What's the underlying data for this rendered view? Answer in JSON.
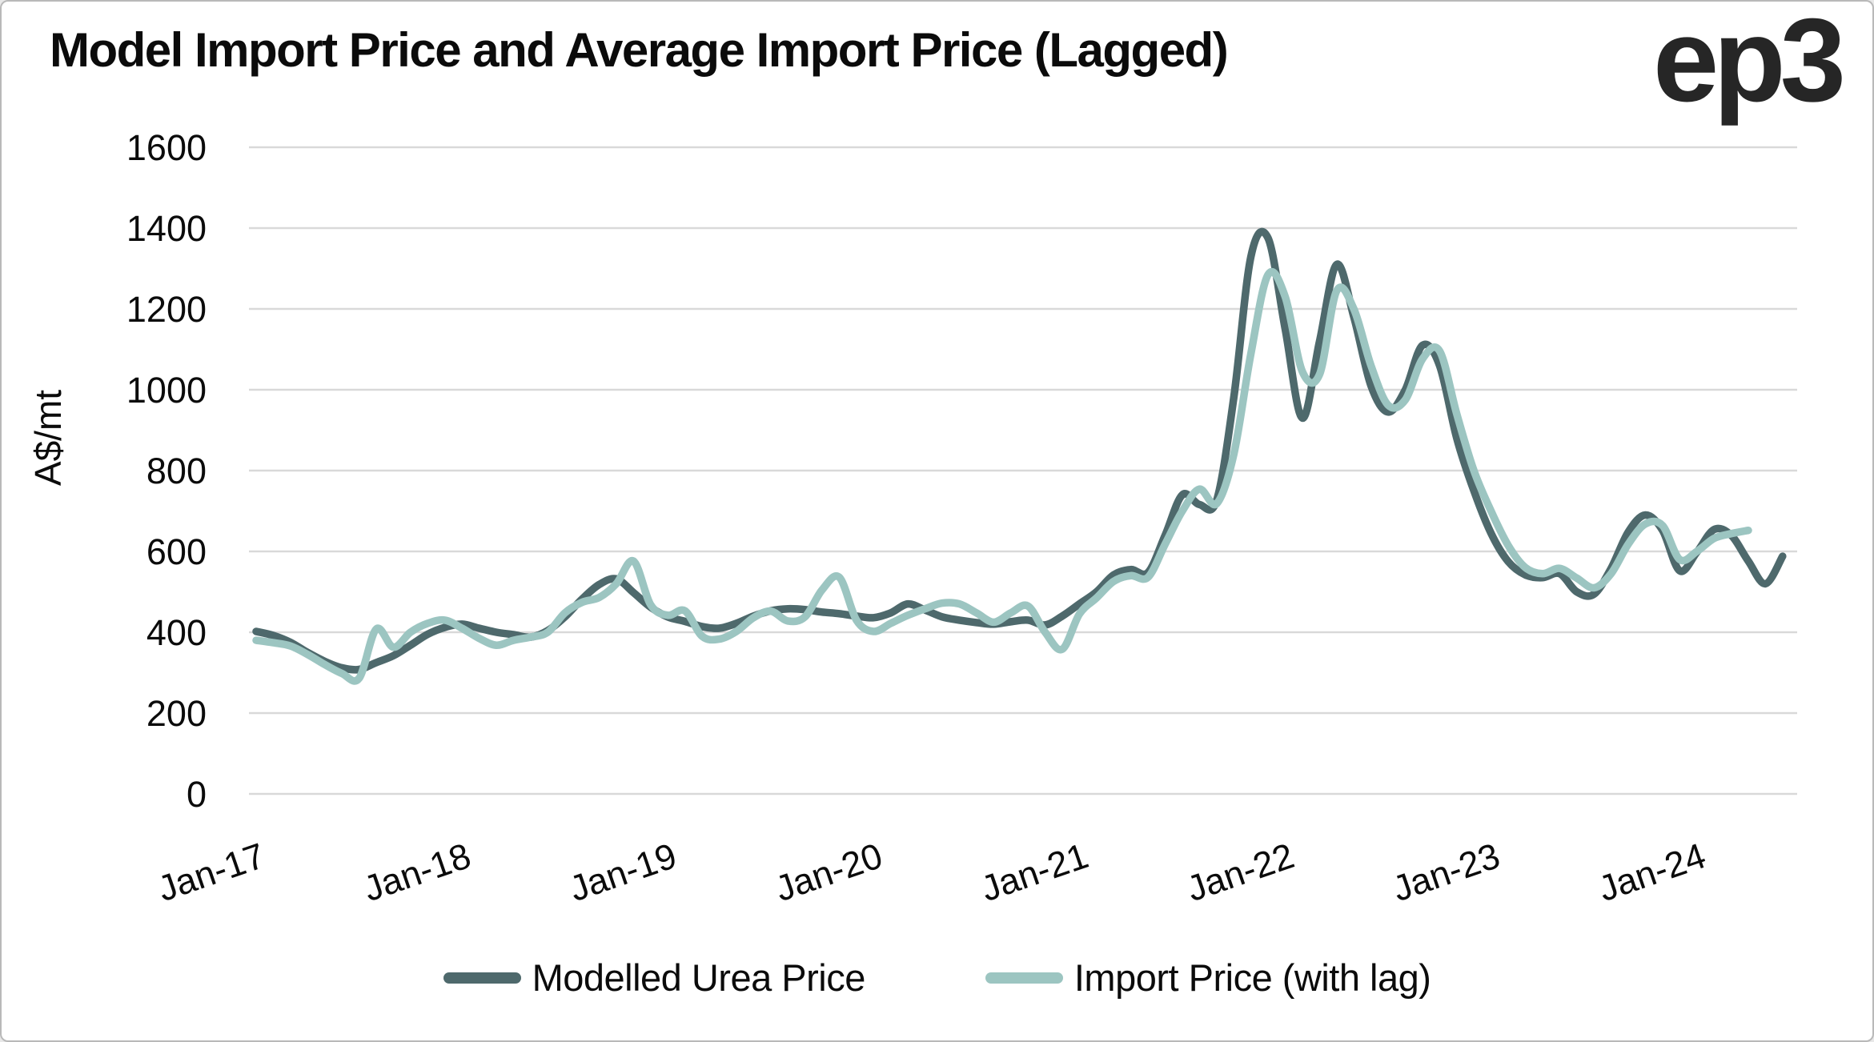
{
  "header": {
    "title": "Model Import Price and Average Import Price (Lagged)",
    "logo_text": "ep3"
  },
  "chart_data": {
    "type": "line",
    "title": "Model Import Price and Average Import Price (Lagged)",
    "xlabel": "",
    "ylabel": "A$/mt",
    "ylim": [
      0,
      1600
    ],
    "ytick_step": 200,
    "ytick_labels": [
      "0",
      "200",
      "400",
      "600",
      "800",
      "1000",
      "1200",
      "1400",
      "1600"
    ],
    "xtick_labels": [
      "Jan-17",
      "Jan-18",
      "Jan-19",
      "Jan-20",
      "Jan-21",
      "Jan-22",
      "Jan-23",
      "Jan-24"
    ],
    "x_start_month": "Jan-17",
    "x_frequency": "monthly",
    "months_per_xtick": 12,
    "grid": "horizontal-only",
    "legend_position": "bottom-center",
    "series": [
      {
        "name": "Modelled Urea Price",
        "color": "#4e696c",
        "end_month": "Jun-24",
        "values": [
          402,
          392,
          375,
          350,
          328,
          312,
          308,
          325,
          342,
          368,
          395,
          412,
          420,
          410,
          400,
          394,
          388,
          404,
          438,
          482,
          518,
          532,
          498,
          462,
          438,
          427,
          414,
          410,
          422,
          440,
          453,
          458,
          456,
          450,
          446,
          440,
          436,
          448,
          470,
          455,
          438,
          430,
          424,
          420,
          426,
          430,
          418,
          440,
          470,
          500,
          542,
          555,
          548,
          640,
          740,
          716,
          726,
          980,
          1330,
          1375,
          1150,
          930,
          1120,
          1310,
          1180,
          1010,
          945,
          1000,
          1110,
          1060,
          880,
          750,
          645,
          575,
          542,
          535,
          545,
          500,
          494,
          558,
          648,
          690,
          652,
          552,
          598,
          654,
          640,
          576,
          520,
          588
        ]
      },
      {
        "name": "Import Price (with lag)",
        "color": "#9cc5c1",
        "end_month": "Apr-24",
        "values": [
          380,
          374,
          366,
          345,
          320,
          298,
          286,
          408,
          363,
          400,
          422,
          430,
          410,
          385,
          368,
          380,
          388,
          400,
          448,
          474,
          486,
          520,
          576,
          468,
          442,
          453,
          390,
          383,
          402,
          436,
          452,
          428,
          438,
          505,
          536,
          430,
          402,
          422,
          442,
          458,
          472,
          470,
          448,
          425,
          448,
          465,
          400,
          358,
          445,
          485,
          526,
          540,
          536,
          618,
          700,
          754,
          718,
          840,
          1090,
          1285,
          1230,
          1045,
          1038,
          1245,
          1200,
          1060,
          962,
          975,
          1076,
          1096,
          940,
          800,
          700,
          615,
          560,
          545,
          558,
          534,
          510,
          545,
          618,
          668,
          664,
          580,
          600,
          632,
          644,
          652
        ]
      }
    ]
  },
  "style": {
    "gridline_color": "#d9d9d9",
    "border_color": "#b9b9b9",
    "text_color": "#0b0b0b",
    "background": "#ffffff"
  }
}
